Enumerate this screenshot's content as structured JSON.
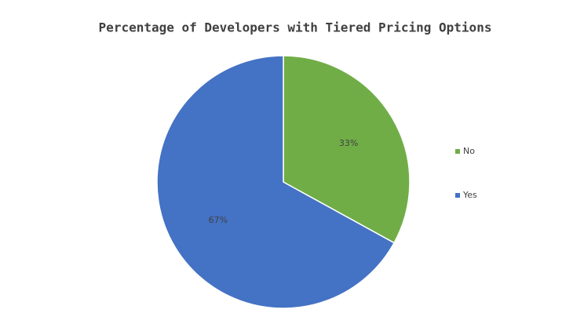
{
  "chart_data": {
    "type": "pie",
    "title": "Percentage of Developers with Tiered Pricing Options",
    "categories": [
      "No",
      "Yes"
    ],
    "values": [
      33,
      67
    ],
    "value_labels": [
      "33%",
      "67%"
    ],
    "colors": [
      "#70ad47",
      "#4472c4"
    ],
    "legend": "right"
  }
}
